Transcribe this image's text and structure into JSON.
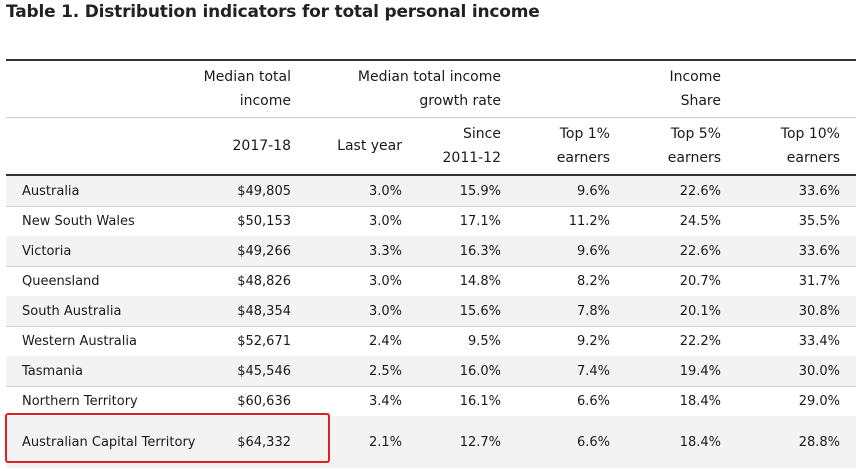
{
  "title": "Table 1. Distribution indicators for total personal income",
  "header": {
    "group_median_income": [
      "Median total",
      "income"
    ],
    "group_growth_rate": [
      "Median total income",
      "growth rate"
    ],
    "group_income_share": [
      "Income",
      "Share"
    ],
    "col_2017_18": "2017-18",
    "col_last_year": "Last year",
    "col_since": [
      "Since",
      "2011-12"
    ],
    "col_top1": [
      "Top 1%",
      "earners"
    ],
    "col_top5": [
      "Top 5%",
      "earners"
    ],
    "col_top10": [
      "Top 10%",
      "earners"
    ]
  },
  "rows": [
    {
      "region": "Australia",
      "median": "$49,805",
      "last_year": "3.0%",
      "since": "15.9%",
      "top1": "9.6%",
      "top5": "22.6%",
      "top10": "33.6%"
    },
    {
      "region": "New South Wales",
      "median": "$50,153",
      "last_year": "3.0%",
      "since": "17.1%",
      "top1": "11.2%",
      "top5": "24.5%",
      "top10": "35.5%"
    },
    {
      "region": "Victoria",
      "median": "$49,266",
      "last_year": "3.3%",
      "since": "16.3%",
      "top1": "9.6%",
      "top5": "22.6%",
      "top10": "33.6%"
    },
    {
      "region": "Queensland",
      "median": "$48,826",
      "last_year": "3.0%",
      "since": "14.8%",
      "top1": "8.2%",
      "top5": "20.7%",
      "top10": "31.7%"
    },
    {
      "region": "South Australia",
      "median": "$48,354",
      "last_year": "3.0%",
      "since": "15.6%",
      "top1": "7.8%",
      "top5": "20.1%",
      "top10": "30.8%"
    },
    {
      "region": "Western Australia",
      "median": "$52,671",
      "last_year": "2.4%",
      "since": "9.5%",
      "top1": "9.2%",
      "top5": "22.2%",
      "top10": "33.4%"
    },
    {
      "region": "Tasmania",
      "median": "$45,546",
      "last_year": "2.5%",
      "since": "16.0%",
      "top1": "7.4%",
      "top5": "19.4%",
      "top10": "30.0%"
    },
    {
      "region": "Northern Territory",
      "median": "$60,636",
      "last_year": "3.4%",
      "since": "16.1%",
      "top1": "6.6%",
      "top5": "18.4%",
      "top10": "29.0%"
    },
    {
      "region": "Australian Capital Territory",
      "median": "$64,332",
      "last_year": "2.1%",
      "since": "12.7%",
      "top1": "6.6%",
      "top5": "18.4%",
      "top10": "28.8%"
    }
  ],
  "colors": {
    "highlight_border": "#e02020",
    "row_shade": "#f3f3f3",
    "rule": "#333333"
  }
}
